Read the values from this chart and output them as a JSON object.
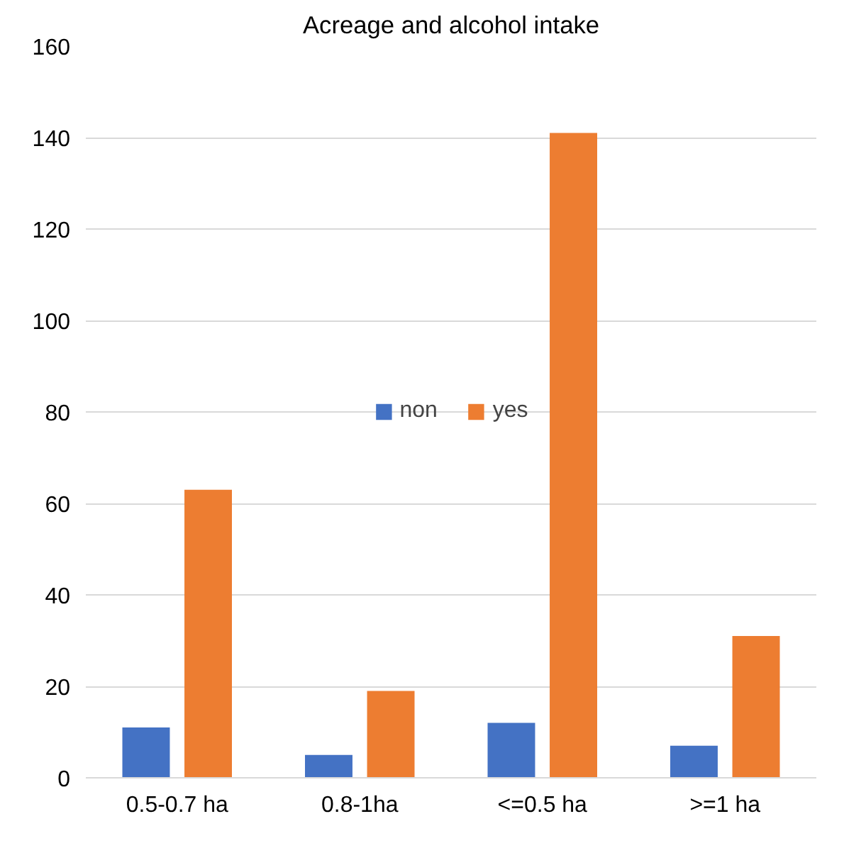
{
  "chart_data": {
    "type": "bar",
    "title": "Acreage and alcohol intake",
    "categories": [
      "0.5-0.7 ha",
      "0.8-1ha",
      "<=0.5 ha",
      ">=1 ha"
    ],
    "series": [
      {
        "name": "non",
        "color": "#4472c4",
        "values": [
          11,
          5,
          12,
          7
        ]
      },
      {
        "name": "yes",
        "color": "#ed7d31",
        "values": [
          63,
          19,
          141,
          31
        ]
      }
    ],
    "ylim": [
      0,
      160
    ],
    "yticks": [
      0,
      20,
      40,
      60,
      80,
      100,
      120,
      140,
      160
    ],
    "grid": "y",
    "legend": "center"
  }
}
